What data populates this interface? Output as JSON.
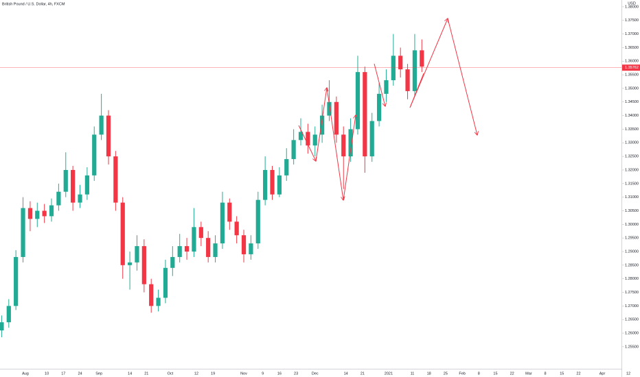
{
  "chart_data": {
    "type": "candlestick",
    "title": "British Pound / U.S. Dollar, 4h, FXCM",
    "y_axis_label": "USD",
    "up_color": "#22ab94",
    "down_color": "#f23645",
    "grid": false,
    "xlim": [
      -10.7,
      258.9
    ],
    "ylim": [
      1.2469,
      1.3825
    ],
    "xticks": [
      {
        "value": 0,
        "label": "Aug"
      },
      {
        "value": 9,
        "label": "10"
      },
      {
        "value": 16,
        "label": "17"
      },
      {
        "value": 23,
        "label": "24"
      },
      {
        "value": 31,
        "label": "Sep"
      },
      {
        "value": 44,
        "label": "14"
      },
      {
        "value": 51,
        "label": "21"
      },
      {
        "value": 61,
        "label": "Oct"
      },
      {
        "value": 72,
        "label": "12"
      },
      {
        "value": 79,
        "label": "19"
      },
      {
        "value": 92,
        "label": "Nov"
      },
      {
        "value": 100,
        "label": "9"
      },
      {
        "value": 107,
        "label": "16"
      },
      {
        "value": 114,
        "label": "23"
      },
      {
        "value": 122,
        "label": "Dec"
      },
      {
        "value": 135,
        "label": "14"
      },
      {
        "value": 142,
        "label": "21"
      },
      {
        "value": 153,
        "label": "2021"
      },
      {
        "value": 163,
        "label": "11"
      },
      {
        "value": 170,
        "label": "18"
      },
      {
        "value": 177,
        "label": "25"
      },
      {
        "value": 184,
        "label": "Feb"
      },
      {
        "value": 191,
        "label": "8"
      },
      {
        "value": 198,
        "label": "15"
      },
      {
        "value": 205,
        "label": "22"
      },
      {
        "value": 212,
        "label": "Mar"
      },
      {
        "value": 219,
        "label": "8"
      },
      {
        "value": 226,
        "label": "15"
      },
      {
        "value": 233,
        "label": "22"
      },
      {
        "value": 243,
        "label": "Apr"
      },
      {
        "value": 254,
        "label": "12"
      }
    ],
    "yticks": [
      {
        "value": 1.255,
        "label": "1.25500"
      },
      {
        "value": 1.26,
        "label": "1.26000"
      },
      {
        "value": 1.265,
        "label": "1.26500"
      },
      {
        "value": 1.27,
        "label": "1.27000"
      },
      {
        "value": 1.275,
        "label": "1.27500"
      },
      {
        "value": 1.28,
        "label": "1.28000"
      },
      {
        "value": 1.285,
        "label": "1.28500"
      },
      {
        "value": 1.29,
        "label": "1.29000"
      },
      {
        "value": 1.295,
        "label": "1.29500"
      },
      {
        "value": 1.3,
        "label": "1.30000"
      },
      {
        "value": 1.305,
        "label": "1.30500"
      },
      {
        "value": 1.31,
        "label": "1.31000"
      },
      {
        "value": 1.315,
        "label": "1.31500"
      },
      {
        "value": 1.32,
        "label": "1.32000"
      },
      {
        "value": 1.325,
        "label": "1.32500"
      },
      {
        "value": 1.33,
        "label": "1.33000"
      },
      {
        "value": 1.335,
        "label": "1.33500"
      },
      {
        "value": 1.34,
        "label": "1.34000"
      },
      {
        "value": 1.345,
        "label": "1.34500"
      },
      {
        "value": 1.35,
        "label": "1.35000"
      },
      {
        "value": 1.355,
        "label": "1.35500"
      },
      {
        "value": 1.36,
        "label": "1.36000"
      },
      {
        "value": 1.365,
        "label": "1.36500"
      },
      {
        "value": 1.37,
        "label": "1.37000"
      },
      {
        "value": 1.375,
        "label": "1.37500"
      },
      {
        "value": 1.38,
        "label": "1.38000"
      }
    ],
    "last_price": 1.35762,
    "x": [
      -10,
      -7,
      -4,
      -1,
      2,
      5,
      8,
      11,
      14,
      17,
      20,
      23,
      26,
      29,
      32,
      35,
      38,
      41,
      44,
      47,
      50,
      53,
      56,
      59,
      62,
      65,
      68,
      71,
      74,
      77,
      80,
      83,
      86,
      89,
      92,
      95,
      98,
      101,
      104,
      107,
      110,
      113,
      116,
      119,
      122,
      125,
      128,
      131,
      134,
      137,
      140,
      143,
      146,
      149,
      152,
      155,
      158,
      161,
      164,
      167
    ],
    "open": [
      1.261,
      1.264,
      1.27,
      1.288,
      1.306,
      1.302,
      1.305,
      1.303,
      1.307,
      1.312,
      1.32,
      1.308,
      1.311,
      1.318,
      1.333,
      1.34,
      1.325,
      1.308,
      1.285,
      1.286,
      1.292,
      1.278,
      1.27,
      1.273,
      1.284,
      1.288,
      1.292,
      1.29,
      1.299,
      1.295,
      1.288,
      1.293,
      1.308,
      1.301,
      1.296,
      1.289,
      1.293,
      1.309,
      1.32,
      1.311,
      1.318,
      1.324,
      1.331,
      1.334,
      1.329,
      1.333,
      1.34,
      1.345,
      1.333,
      1.325,
      1.335,
      1.356,
      1.325,
      1.338,
      1.348,
      1.353,
      1.362,
      1.357,
      1.349,
      1.364
    ],
    "high": [
      1.2665,
      1.2725,
      1.2905,
      1.31,
      1.3085,
      1.308,
      1.3075,
      1.3095,
      1.315,
      1.3265,
      1.3215,
      1.3145,
      1.321,
      1.336,
      1.348,
      1.342,
      1.327,
      1.31,
      1.29,
      1.296,
      1.2945,
      1.28,
      1.276,
      1.287,
      1.292,
      1.2965,
      1.295,
      1.306,
      1.301,
      1.2975,
      1.296,
      1.312,
      1.3095,
      1.303,
      1.298,
      1.296,
      1.312,
      1.325,
      1.3215,
      1.321,
      1.328,
      1.335,
      1.339,
      1.337,
      1.336,
      1.344,
      1.353,
      1.347,
      1.336,
      1.339,
      1.362,
      1.358,
      1.341,
      1.352,
      1.357,
      1.37,
      1.365,
      1.359,
      1.37,
      1.368
    ],
    "low": [
      1.2585,
      1.262,
      1.2685,
      1.286,
      1.2975,
      1.299,
      1.3005,
      1.301,
      1.305,
      1.31,
      1.305,
      1.306,
      1.309,
      1.316,
      1.331,
      1.322,
      1.305,
      1.28,
      1.276,
      1.283,
      1.275,
      1.2675,
      1.268,
      1.271,
      1.281,
      1.286,
      1.287,
      1.288,
      1.292,
      1.286,
      1.286,
      1.291,
      1.298,
      1.293,
      1.286,
      1.287,
      1.291,
      1.307,
      1.309,
      1.31,
      1.316,
      1.322,
      1.329,
      1.326,
      1.325,
      1.33,
      1.338,
      1.33,
      1.313,
      1.323,
      1.333,
      1.319,
      1.323,
      1.336,
      1.345,
      1.351,
      1.354,
      1.346,
      1.347,
      1.356
    ],
    "close": [
      1.264,
      1.27,
      1.288,
      1.306,
      1.302,
      1.305,
      1.303,
      1.307,
      1.312,
      1.32,
      1.308,
      1.311,
      1.318,
      1.333,
      1.34,
      1.325,
      1.308,
      1.285,
      1.286,
      1.292,
      1.278,
      1.27,
      1.273,
      1.284,
      1.288,
      1.292,
      1.29,
      1.299,
      1.295,
      1.288,
      1.293,
      1.308,
      1.301,
      1.296,
      1.289,
      1.293,
      1.309,
      1.32,
      1.311,
      1.318,
      1.324,
      1.331,
      1.334,
      1.329,
      1.333,
      1.34,
      1.345,
      1.333,
      1.325,
      1.335,
      1.356,
      1.325,
      1.338,
      1.348,
      1.353,
      1.362,
      1.357,
      1.349,
      1.364,
      1.358
    ]
  }
}
